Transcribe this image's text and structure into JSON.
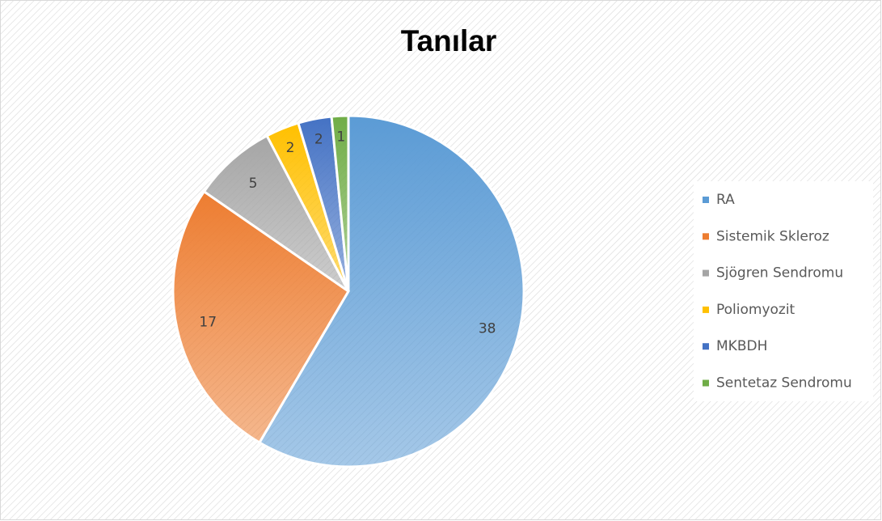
{
  "chart_data": {
    "type": "pie",
    "title": "Tanılar",
    "categories": [
      "RA",
      "Sistemik Skleroz",
      "Sjögren Sendromu",
      "Poliomyozit",
      "MKBDH",
      "Sentetaz Sendromu"
    ],
    "values": [
      38,
      17,
      5,
      2,
      2,
      1
    ],
    "colors": [
      "#5b9bd5",
      "#ed7d31",
      "#a5a5a5",
      "#ffc000",
      "#4472c4",
      "#70ad47"
    ],
    "legend": "right"
  }
}
